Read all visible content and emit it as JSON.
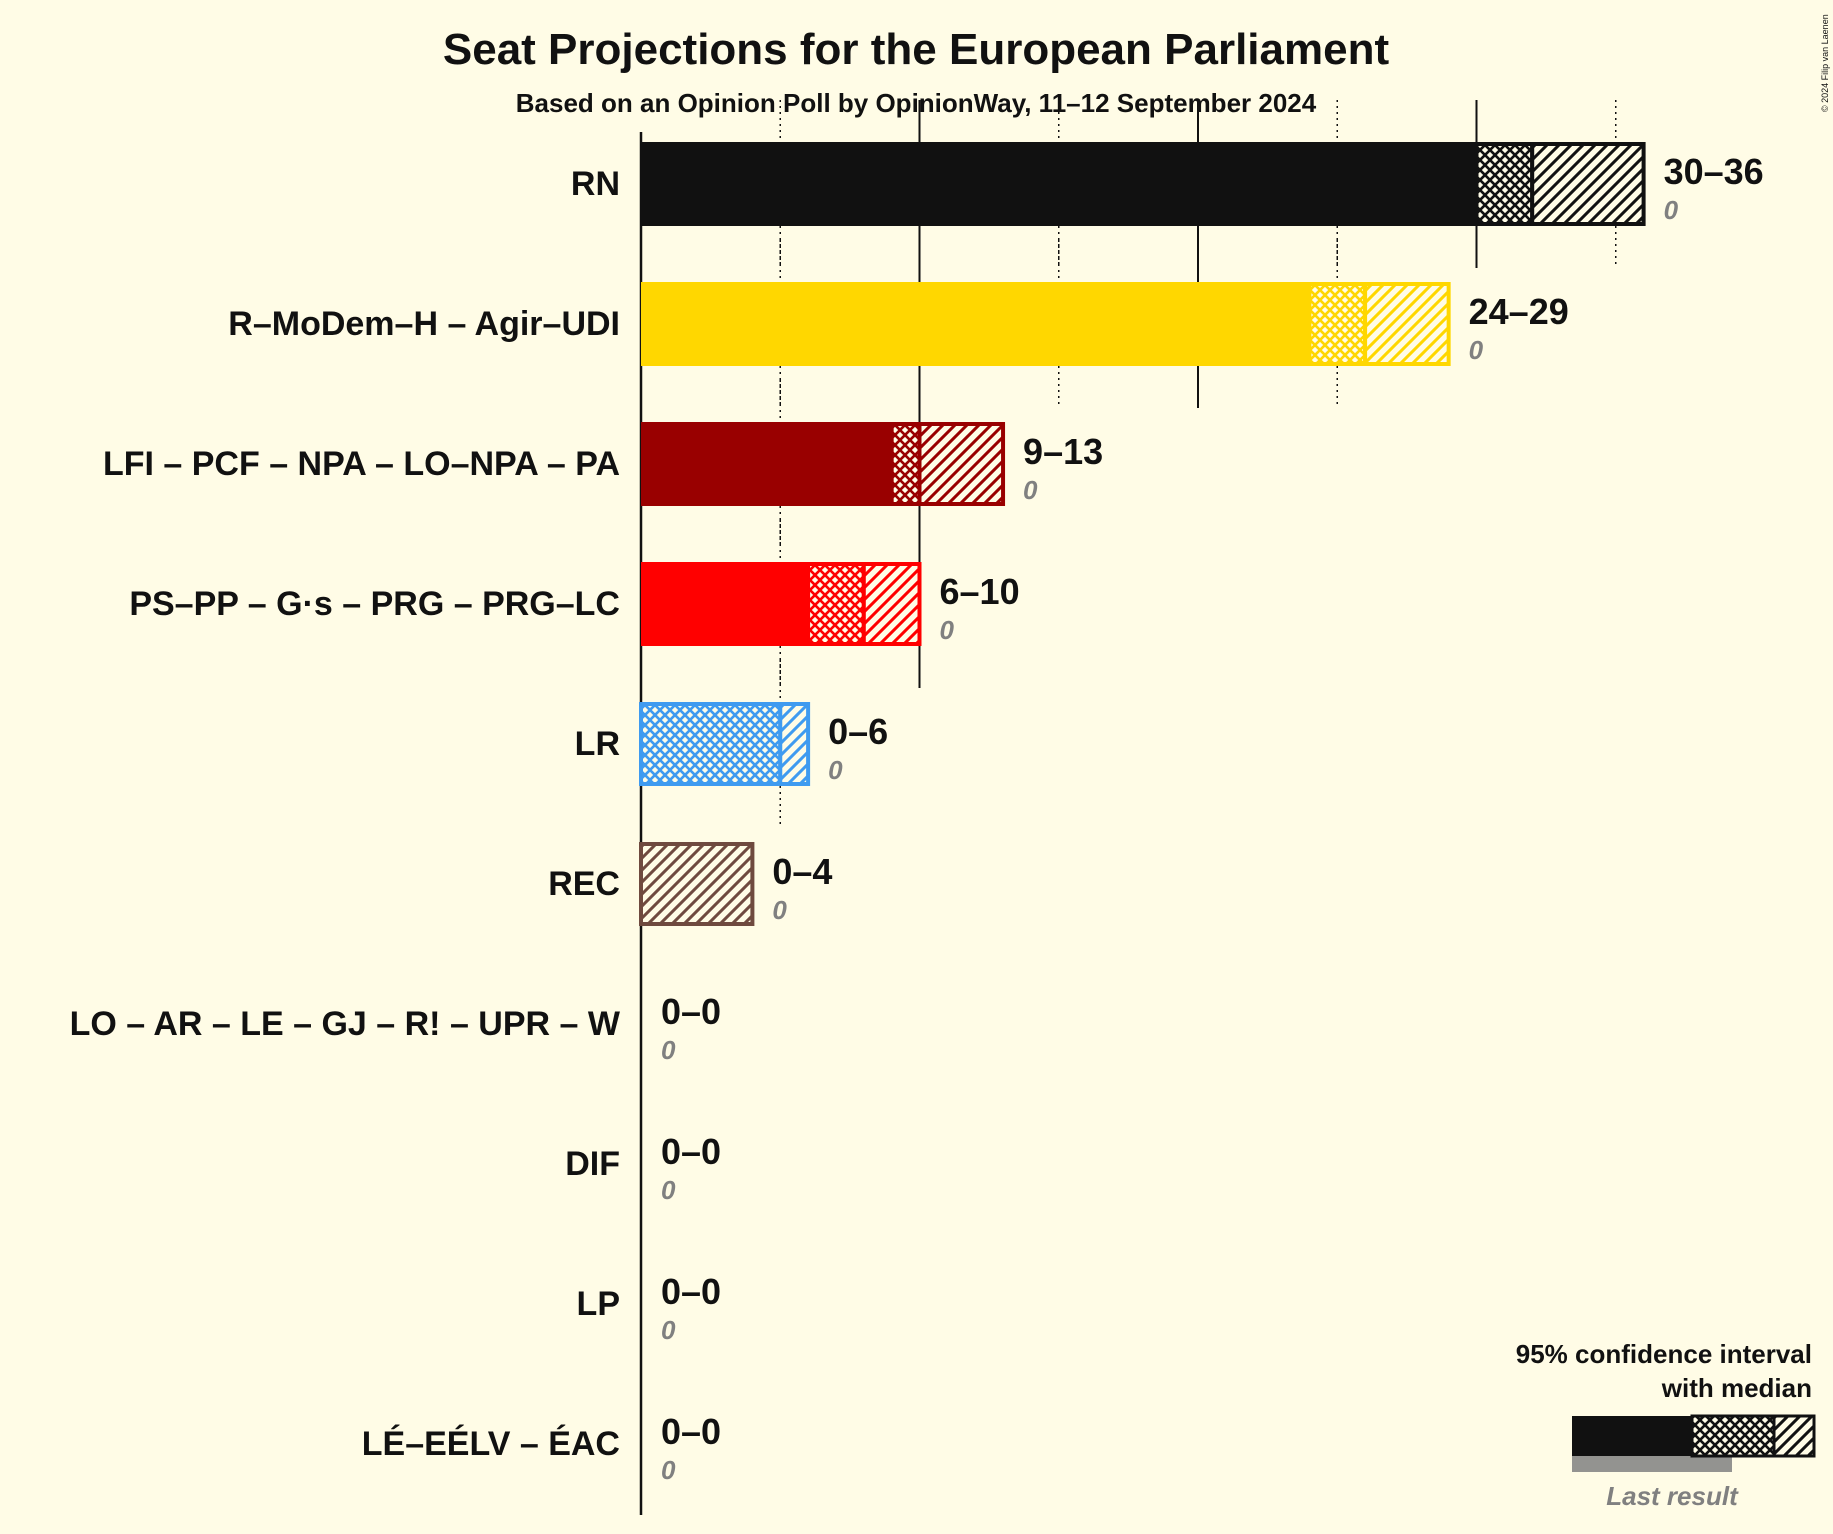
{
  "chart_data": {
    "type": "bar",
    "title": "Seat Projections for the European Parliament",
    "subtitle": "Based on an Opinion Poll by OpinionWay, 11–12 September 2024",
    "copyright": "© 2024 Filip van Laenen",
    "scale_max": 36,
    "gridlines": [
      5,
      10,
      15,
      20,
      25,
      30,
      35
    ],
    "categories": [
      "RN",
      "R–MoDem–H – Agir–UDI",
      "LFI – PCF – NPA – LO–NPA – PA",
      "PS–PP – G·s – PRG – PRG–LC",
      "LR",
      "REC",
      "LO – AR – LE – GJ – R! – UPR – W",
      "DIF",
      "LP",
      "LÉ–EÉLV – ÉAC"
    ],
    "series": [
      {
        "name": "RN",
        "color": "#111111",
        "low": 30,
        "median": 32,
        "high": 36,
        "range_label": "30–36",
        "last_result": 0,
        "last_result_label": "0"
      },
      {
        "name": "R–MoDem–H – Agir–UDI",
        "color": "#FFD700",
        "low": 24,
        "median": 26,
        "high": 29,
        "range_label": "24–29",
        "last_result": 0,
        "last_result_label": "0"
      },
      {
        "name": "LFI – PCF – NPA – LO–NPA – PA",
        "color": "#990000",
        "low": 9,
        "median": 10,
        "high": 13,
        "range_label": "9–13",
        "last_result": 0,
        "last_result_label": "0"
      },
      {
        "name": "PS–PP – G·s – PRG – PRG–LC",
        "color": "#FF0000",
        "low": 6,
        "median": 8,
        "high": 10,
        "range_label": "6–10",
        "last_result": 0,
        "last_result_label": "0"
      },
      {
        "name": "LR",
        "color": "#3F9BF0",
        "low": 0,
        "median": 5,
        "high": 6,
        "range_label": "0–6",
        "last_result": 0,
        "last_result_label": "0"
      },
      {
        "name": "REC",
        "color": "#6F4A3F",
        "low": 0,
        "median": 0,
        "high": 4,
        "range_label": "0–4",
        "last_result": 0,
        "last_result_label": "0"
      },
      {
        "name": "LO – AR – LE – GJ – R! – UPR – W",
        "color": "#999999",
        "low": 0,
        "median": 0,
        "high": 0,
        "range_label": "0–0",
        "last_result": 0,
        "last_result_label": "0"
      },
      {
        "name": "DIF",
        "color": "#999999",
        "low": 0,
        "median": 0,
        "high": 0,
        "range_label": "0–0",
        "last_result": 0,
        "last_result_label": "0"
      },
      {
        "name": "LP",
        "color": "#999999",
        "low": 0,
        "median": 0,
        "high": 0,
        "range_label": "0–0",
        "last_result": 0,
        "last_result_label": "0"
      },
      {
        "name": "LÉ–EÉLV – ÉAC",
        "color": "#999999",
        "low": 0,
        "median": 0,
        "high": 0,
        "range_label": "0–0",
        "last_result": 0,
        "last_result_label": "0"
      }
    ],
    "legend": {
      "line1": "95% confidence interval",
      "line2": "with median",
      "last_result": "Last result",
      "placement": "bottom-right"
    }
  },
  "colors": {
    "background": "#FFFCE6",
    "text": "#111111",
    "muted": "#808080"
  }
}
